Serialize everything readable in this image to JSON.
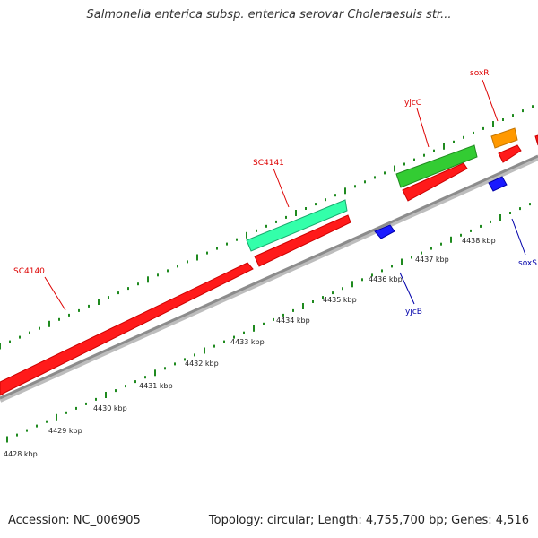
{
  "title": "Salmonella enterica subsp. enterica serovar Choleraesuis str...",
  "footer": {
    "accession": "Accession: NC_006905",
    "stats": "Topology: circular; Length: 4,755,700 bp; Genes: 4,516"
  },
  "colors": {
    "backbone": "#8c8c8c",
    "tick": "#1f8a1f",
    "cds_forward": "#ff1a1a",
    "gene_green": "#33cc33",
    "gene_teal": "#33ffaa",
    "gene_orange": "#ff9900",
    "gene_blue": "#1a1aff",
    "label_forward": "#dd0000",
    "label_reverse": "#0000aa"
  },
  "ticks": [
    {
      "label": "4428 kbp"
    },
    {
      "label": "4429 kbp"
    },
    {
      "label": "4430 kbp"
    },
    {
      "label": "4431 kbp"
    },
    {
      "label": "4432 kbp"
    },
    {
      "label": "4433 kbp"
    },
    {
      "label": "4434 kbp"
    },
    {
      "label": "4435 kbp"
    },
    {
      "label": "4436 kbp"
    },
    {
      "label": "4437 kbp"
    },
    {
      "label": "4438 kbp"
    }
  ],
  "genes": [
    {
      "name": "SC4140",
      "strand": "forward"
    },
    {
      "name": "SC4141",
      "strand": "forward"
    },
    {
      "name": "yjcC",
      "strand": "forward"
    },
    {
      "name": "soxR",
      "strand": "forward"
    },
    {
      "name": "yjcB",
      "strand": "reverse"
    },
    {
      "name": "soxS",
      "strand": "reverse"
    }
  ]
}
